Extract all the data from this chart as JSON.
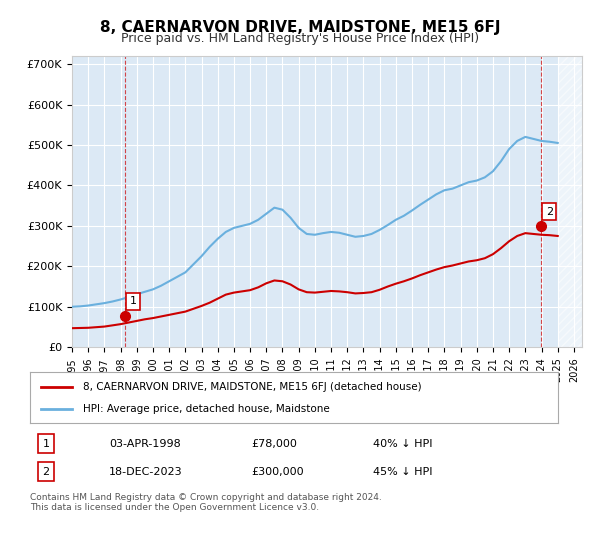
{
  "title": "8, CAERNARVON DRIVE, MAIDSTONE, ME15 6FJ",
  "subtitle": "Price paid vs. HM Land Registry's House Price Index (HPI)",
  "xlabel": "",
  "ylabel": "",
  "ylim": [
    0,
    720000
  ],
  "yticks": [
    0,
    100000,
    200000,
    300000,
    400000,
    500000,
    600000,
    700000
  ],
  "ytick_labels": [
    "£0",
    "£100K",
    "£200K",
    "£300K",
    "£400K",
    "£500K",
    "£600K",
    "£700K"
  ],
  "xlim_start": 1995.0,
  "xlim_end": 2026.5,
  "hpi_color": "#6ab0de",
  "price_color": "#cc0000",
  "background_color": "#dce9f5",
  "plot_bg_color": "#dce9f5",
  "grid_color": "#ffffff",
  "marker1_x": 1998.25,
  "marker1_y": 78000,
  "marker2_x": 2023.96,
  "marker2_y": 300000,
  "marker1_label": "1",
  "marker2_label": "2",
  "legend_line1": "8, CAERNARVON DRIVE, MAIDSTONE, ME15 6FJ (detached house)",
  "legend_line2": "HPI: Average price, detached house, Maidstone",
  "table_row1": [
    "1",
    "03-APR-1998",
    "£78,000",
    "40% ↓ HPI"
  ],
  "table_row2": [
    "2",
    "18-DEC-2023",
    "£300,000",
    "45% ↓ HPI"
  ],
  "footnote": "Contains HM Land Registry data © Crown copyright and database right 2024.\nThis data is licensed under the Open Government Licence v3.0.",
  "hpi_years": [
    1995,
    1995.5,
    1996,
    1996.5,
    1997,
    1997.5,
    1998,
    1998.5,
    1999,
    1999.5,
    2000,
    2000.5,
    2001,
    2001.5,
    2002,
    2002.5,
    2003,
    2003.5,
    2004,
    2004.5,
    2005,
    2005.5,
    2006,
    2006.5,
    2007,
    2007.5,
    2008,
    2008.5,
    2009,
    2009.5,
    2010,
    2010.5,
    2011,
    2011.5,
    2012,
    2012.5,
    2013,
    2013.5,
    2014,
    2014.5,
    2015,
    2015.5,
    2016,
    2016.5,
    2017,
    2017.5,
    2018,
    2018.5,
    2019,
    2019.5,
    2020,
    2020.5,
    2021,
    2021.5,
    2022,
    2022.5,
    2023,
    2023.5,
    2024,
    2024.5,
    2025
  ],
  "hpi_values": [
    100000,
    101000,
    103000,
    106000,
    109000,
    113000,
    118000,
    124000,
    131000,
    137000,
    143000,
    152000,
    163000,
    174000,
    185000,
    205000,
    225000,
    248000,
    268000,
    285000,
    295000,
    300000,
    305000,
    315000,
    330000,
    345000,
    340000,
    320000,
    295000,
    280000,
    278000,
    282000,
    285000,
    283000,
    278000,
    273000,
    275000,
    280000,
    290000,
    302000,
    315000,
    325000,
    338000,
    352000,
    365000,
    378000,
    388000,
    392000,
    400000,
    408000,
    412000,
    420000,
    435000,
    460000,
    490000,
    510000,
    520000,
    515000,
    510000,
    508000,
    505000
  ],
  "price_years": [
    1995,
    1995.5,
    1996,
    1996.5,
    1997,
    1997.5,
    1998,
    1998.5,
    1999,
    1999.5,
    2000,
    2000.5,
    2001,
    2001.5,
    2002,
    2002.5,
    2003,
    2003.5,
    2004,
    2004.5,
    2005,
    2005.5,
    2006,
    2006.5,
    2007,
    2007.5,
    2008,
    2008.5,
    2009,
    2009.5,
    2010,
    2010.5,
    2011,
    2011.5,
    2012,
    2012.5,
    2013,
    2013.5,
    2014,
    2014.5,
    2015,
    2015.5,
    2016,
    2016.5,
    2017,
    2017.5,
    2018,
    2018.5,
    2019,
    2019.5,
    2020,
    2020.5,
    2021,
    2021.5,
    2022,
    2022.5,
    2023,
    2023.5,
    2024,
    2024.5,
    2025
  ],
  "price_values": [
    47000,
    47500,
    48000,
    49500,
    51000,
    54000,
    57000,
    61000,
    65000,
    69000,
    72000,
    76000,
    80000,
    84000,
    88000,
    95000,
    102000,
    110000,
    120000,
    130000,
    135000,
    138000,
    141000,
    148000,
    158000,
    165000,
    163000,
    155000,
    143000,
    136000,
    135000,
    137000,
    139000,
    138000,
    136000,
    133000,
    134000,
    136000,
    142000,
    150000,
    157000,
    163000,
    170000,
    178000,
    185000,
    192000,
    198000,
    202000,
    207000,
    212000,
    215000,
    220000,
    230000,
    245000,
    262000,
    275000,
    282000,
    280000,
    278000,
    277000,
    275000
  ]
}
